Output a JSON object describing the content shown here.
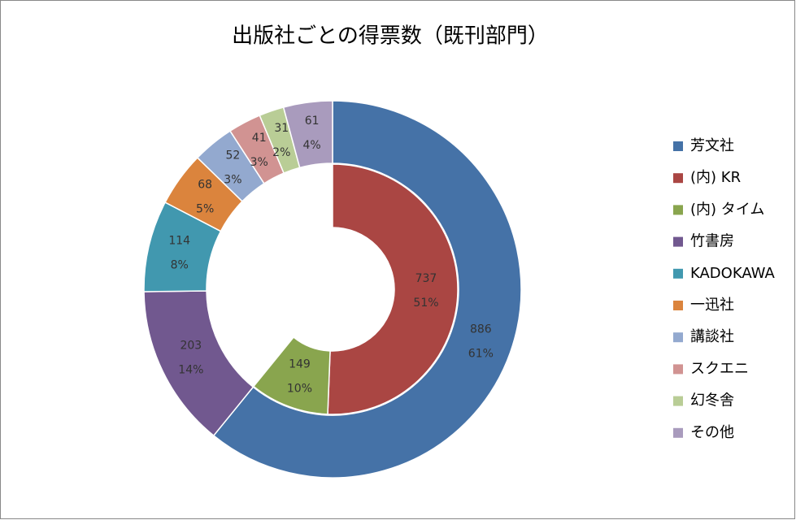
{
  "chart_data": {
    "type": "nested-donut",
    "title": "出版社ごとの得票数（既刊部門）",
    "rings": [
      {
        "categories": [
          "芳文社",
          "竹書房",
          "KADOKAWA",
          "一迅社",
          "講談社",
          "スクエニ",
          "幻冬舎",
          "その他"
        ],
        "colors": [
          "#4572a7",
          "#71588f",
          "#4198af",
          "#db843d",
          "#93a9cf",
          "#d19392",
          "#b9cd96",
          "#a99bbd"
        ],
        "values": [
          886,
          203,
          114,
          68,
          52,
          41,
          31,
          61
        ],
        "percent_labels": [
          "61%",
          "14%",
          "8%",
          "5%",
          "3%",
          "3%",
          "2%",
          "4%"
        ]
      },
      {
        "categories": [
          "(内) KR",
          "(内) タイム"
        ],
        "colors": [
          "#aa4643",
          "#89a54e"
        ],
        "values": [
          737,
          149
        ],
        "percent_labels": [
          "51%",
          "10%"
        ]
      }
    ]
  }
}
